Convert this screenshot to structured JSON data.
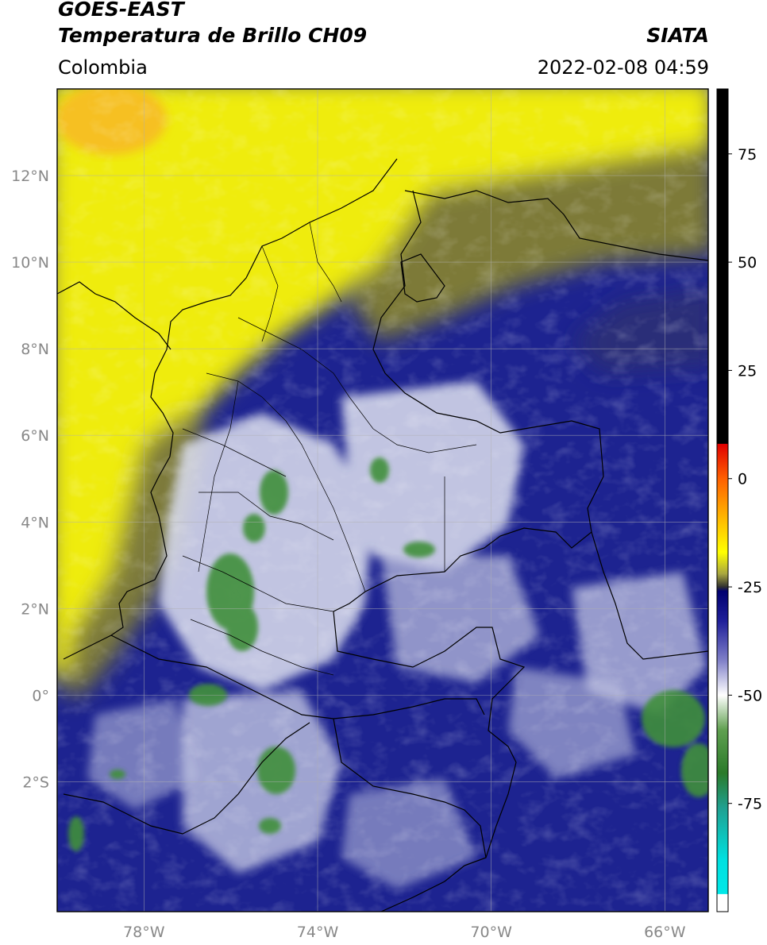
{
  "header": {
    "title_line1": "GOES-EAST",
    "title_line2": "Temperatura de Brillo CH09",
    "subtitle": "Colombia",
    "agency": "SIATA",
    "timestamp": "2022-02-08 04:59"
  },
  "map": {
    "lon_range": [
      -80,
      -65
    ],
    "lat_range": [
      -5,
      14
    ],
    "lat_ticks": [
      {
        "value": 12,
        "label": "12°N"
      },
      {
        "value": 10,
        "label": "10°N"
      },
      {
        "value": 8,
        "label": "8°N"
      },
      {
        "value": 6,
        "label": "6°N"
      },
      {
        "value": 4,
        "label": "4°N"
      },
      {
        "value": 2,
        "label": "2°N"
      },
      {
        "value": 0,
        "label": "0°"
      },
      {
        "value": -2,
        "label": "2°S"
      }
    ],
    "lon_ticks": [
      {
        "value": -78,
        "label": "78°W"
      },
      {
        "value": -74,
        "label": "74°W"
      },
      {
        "value": -70,
        "label": "70°W"
      },
      {
        "value": -66,
        "label": "66°W"
      }
    ],
    "colors": {
      "warm_sky": "#f2ee00",
      "warm_peak": "#f7c21c",
      "olive": "#8c8a3a",
      "cloud_blue": "#1a1f8a",
      "cloud_white": "#e6e8f2",
      "cold_green": "#3f8f3a"
    }
  },
  "colorbar": {
    "range": [
      -100,
      90
    ],
    "ticks": [
      {
        "value": 75,
        "label": "75"
      },
      {
        "value": 50,
        "label": "50"
      },
      {
        "value": 25,
        "label": "25"
      },
      {
        "value": 0,
        "label": "0"
      },
      {
        "value": -25,
        "label": "-25"
      },
      {
        "value": -50,
        "label": "-50"
      },
      {
        "value": -75,
        "label": "-75"
      }
    ],
    "stops": [
      {
        "value": 90,
        "color": "#000000"
      },
      {
        "value": 8.1,
        "color": "#000000"
      },
      {
        "value": 8,
        "color": "#e00000"
      },
      {
        "value": 0,
        "color": "#ff6000"
      },
      {
        "value": -10,
        "color": "#ffc000"
      },
      {
        "value": -17,
        "color": "#ffff00"
      },
      {
        "value": -22,
        "color": "#a8a640"
      },
      {
        "value": -25,
        "color": "#303030"
      },
      {
        "value": -26,
        "color": "#000070"
      },
      {
        "value": -33,
        "color": "#20209a"
      },
      {
        "value": -42,
        "color": "#8080c8"
      },
      {
        "value": -50,
        "color": "#ffffff"
      },
      {
        "value": -58,
        "color": "#60a050"
      },
      {
        "value": -68,
        "color": "#2a7a2a"
      },
      {
        "value": -76,
        "color": "#20a090"
      },
      {
        "value": -88,
        "color": "#00e0e0"
      },
      {
        "value": -95.9,
        "color": "#00e8e8"
      },
      {
        "value": -96,
        "color": "#ffffff"
      },
      {
        "value": -100,
        "color": "#ffffff"
      }
    ]
  }
}
